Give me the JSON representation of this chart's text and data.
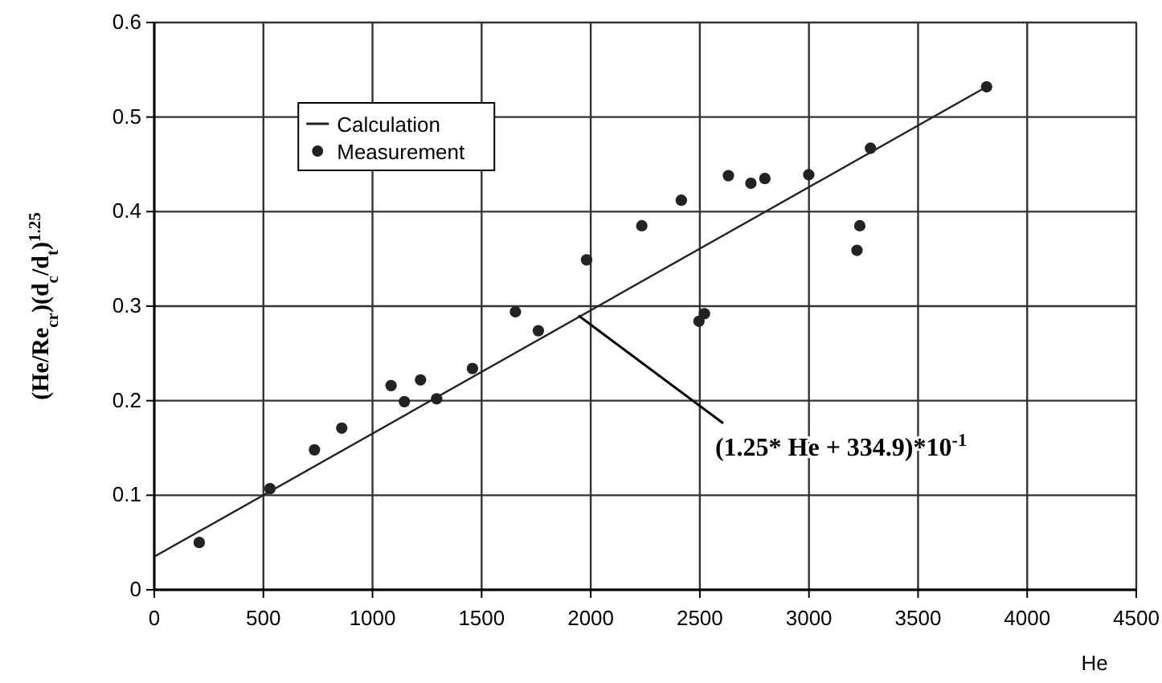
{
  "chart_data": {
    "type": "scatter",
    "xlabel": "He",
    "ylabel": "(He/Re$_{cr}$)(d$_{c}$/d$_{t}$)$^{1.25}$",
    "xlim": [
      0,
      4500
    ],
    "ylim": [
      0,
      0.6
    ],
    "xticks": [
      0,
      500,
      1000,
      1500,
      2000,
      2500,
      3000,
      3500,
      4000,
      4500
    ],
    "yticks": [
      0,
      0.1,
      0.2,
      0.3,
      0.4,
      0.5,
      0.6
    ],
    "grid": true,
    "legend": "top left",
    "series": [
      {
        "name": "Calculation",
        "type": "line",
        "color": "#222222",
        "marker": "none",
        "line_style": "solid",
        "x": [
          0,
          3814
        ],
        "values": [
          0.035,
          0.532
        ]
      },
      {
        "name": "Measurement",
        "color": "#222222",
        "marker": "circle",
        "x": [
          206,
          530,
          734,
          859,
          1085,
          1146,
          1220,
          1294,
          1458,
          1655,
          1760,
          1981,
          2234,
          2415,
          2496,
          2521,
          2631,
          2734,
          2798,
          2999,
          3220,
          3233,
          3282,
          3814
        ],
        "values": [
          0.05,
          0.107,
          0.148,
          0.171,
          0.216,
          0.199,
          0.222,
          0.202,
          0.234,
          0.294,
          0.274,
          0.349,
          0.385,
          0.412,
          0.284,
          0.292,
          0.438,
          0.43,
          0.435,
          0.439,
          0.359,
          0.385,
          0.467,
          0.532
        ]
      }
    ],
    "annotations": [
      {
        "text": "(1.25* He + 334.9)*10$^{-1}$",
        "x": 1944,
        "y": 0.29
      }
    ]
  }
}
